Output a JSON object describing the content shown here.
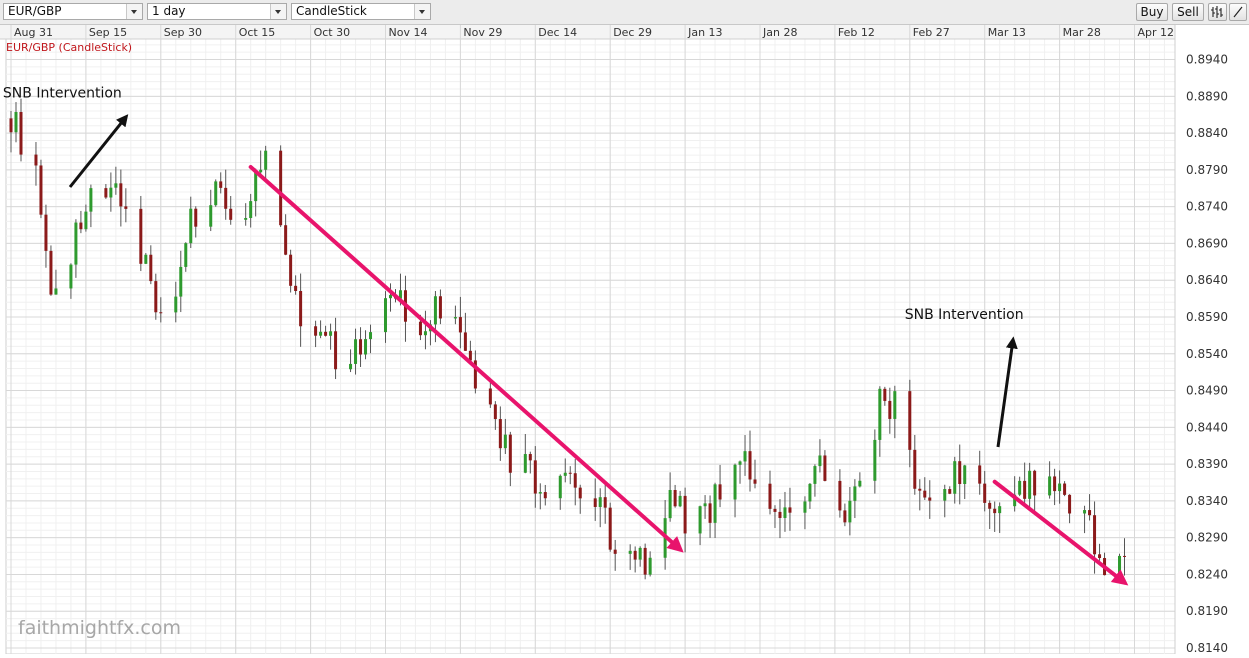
{
  "toolbar": {
    "symbol_value": "EUR/GBP",
    "timeframe_value": "1 day",
    "chart_type_value": "CandleStick",
    "buy_label": "Buy",
    "sell_label": "Sell"
  },
  "chart_data": {
    "type": "candlestick",
    "title": "EUR/GBP (CandleStick)",
    "watermark": "faithmightfx.com",
    "x_tick_labels": [
      "Aug 31",
      "Sep 15",
      "Sep 30",
      "Oct 15",
      "Oct 30",
      "Nov 14",
      "Nov 29",
      "Dec 14",
      "Dec 29",
      "Jan 13",
      "Jan 28",
      "Feb 12",
      "Feb 27",
      "Mar 13",
      "Mar 28",
      "Apr 12"
    ],
    "y_ticks": [
      0.814,
      0.819,
      0.824,
      0.829,
      0.834,
      0.839,
      0.844,
      0.849,
      0.854,
      0.859,
      0.864,
      0.869,
      0.874,
      0.879,
      0.884,
      0.889,
      0.894
    ],
    "ylim": [
      0.814,
      0.8972
    ],
    "grid": true,
    "colors": {
      "up": "#2e9a2e",
      "down": "#8b1a1a",
      "trend": "#e8146c",
      "annotation": "#111111",
      "title": "#c0161b"
    },
    "annotations": [
      {
        "text": "SNB Intervention",
        "date": "Sep 10",
        "price": 0.8894
      },
      {
        "text": "SNB Intervention",
        "date": "Mar 9",
        "price": 0.8571
      }
    ],
    "trend_arrows": [
      {
        "from": {
          "date": "Oct 18",
          "price": 0.8794
        },
        "to": {
          "date": "Jan 12",
          "price": 0.8274
        }
      },
      {
        "from": {
          "date": "Mar 15",
          "price": 0.8366
        },
        "to": {
          "date": "Apr 10",
          "price": 0.8229
        }
      }
    ],
    "trend": [
      {
        "date": "Aug 31",
        "price": 0.886
      },
      {
        "date": "Sep 5",
        "price": 0.879
      },
      {
        "date": "Sep 8",
        "price": 0.86
      },
      {
        "date": "Sep 15",
        "price": 0.873
      },
      {
        "date": "Sep 20",
        "price": 0.877
      },
      {
        "date": "Sep 25",
        "price": 0.87
      },
      {
        "date": "Oct 1",
        "price": 0.858
      },
      {
        "date": "Oct 6",
        "price": 0.872
      },
      {
        "date": "Oct 11",
        "price": 0.876
      },
      {
        "date": "Oct 15",
        "price": 0.872
      },
      {
        "date": "Oct 20",
        "price": 0.88
      },
      {
        "date": "Oct 23",
        "price": 0.878
      },
      {
        "date": "Oct 26",
        "price": 0.861
      },
      {
        "date": "Oct 31",
        "price": 0.859
      },
      {
        "date": "Nov 5",
        "price": 0.852
      },
      {
        "date": "Nov 10",
        "price": 0.857
      },
      {
        "date": "Nov 15",
        "price": 0.862
      },
      {
        "date": "Nov 20",
        "price": 0.858
      },
      {
        "date": "Nov 25",
        "price": 0.86
      },
      {
        "date": "Nov 30",
        "price": 0.856
      },
      {
        "date": "Dec 5",
        "price": 0.845
      },
      {
        "date": "Dec 9",
        "price": 0.839
      },
      {
        "date": "Dec 14",
        "price": 0.837
      },
      {
        "date": "Dec 19",
        "price": 0.835
      },
      {
        "date": "Dec 24",
        "price": 0.836
      },
      {
        "date": "Dec 29",
        "price": 0.83
      },
      {
        "date": "Jan 2",
        "price": 0.825
      },
      {
        "date": "Jan 6",
        "price": 0.826
      },
      {
        "date": "Jan 10",
        "price": 0.834
      },
      {
        "date": "Jan 15",
        "price": 0.83
      },
      {
        "date": "Jan 20",
        "price": 0.835
      },
      {
        "date": "Jan 25",
        "price": 0.839
      },
      {
        "date": "Jan 30",
        "price": 0.832
      },
      {
        "date": "Feb 4",
        "price": 0.83
      },
      {
        "date": "Feb 9",
        "price": 0.838
      },
      {
        "date": "Feb 14",
        "price": 0.831
      },
      {
        "date": "Feb 18",
        "price": 0.836
      },
      {
        "date": "Feb 21",
        "price": 0.848
      },
      {
        "date": "Feb 25",
        "price": 0.847
      },
      {
        "date": "Feb 29",
        "price": 0.834
      },
      {
        "date": "Mar 4",
        "price": 0.835
      },
      {
        "date": "Mar 8",
        "price": 0.838
      },
      {
        "date": "Mar 11",
        "price": 0.841
      },
      {
        "date": "Mar 14",
        "price": 0.832
      },
      {
        "date": "Mar 19",
        "price": 0.834
      },
      {
        "date": "Mar 24",
        "price": 0.837
      },
      {
        "date": "Mar 29",
        "price": 0.835
      },
      {
        "date": "Apr 3",
        "price": 0.83
      },
      {
        "date": "Apr 7",
        "price": 0.824
      },
      {
        "date": "Apr 10",
        "price": 0.826
      }
    ]
  }
}
